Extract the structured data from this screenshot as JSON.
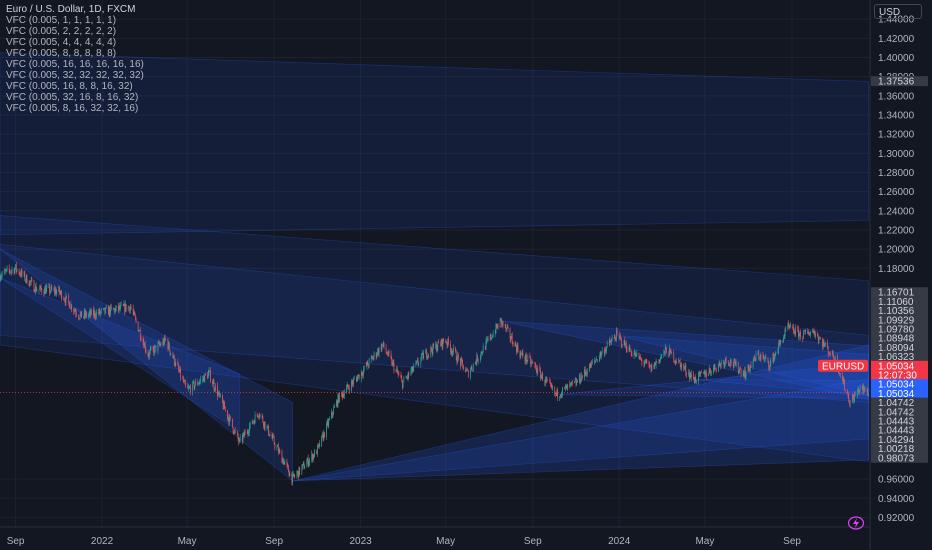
{
  "chart_data": {
    "type": "candlestick",
    "title": "Euro / U.S. Dollar, 1D, FXCM",
    "symbol": "EURUSD",
    "currency": "USD",
    "ylim": [
      0.91,
      1.46
    ],
    "y_ticks": [
      1.44,
      1.42,
      1.4,
      1.38,
      1.36,
      1.34,
      1.32,
      1.3,
      1.28,
      1.26,
      1.24,
      1.22,
      1.2,
      1.18,
      0.96,
      0.94,
      0.92
    ],
    "y_tick_labels": [
      "1.44000",
      "1.42000",
      "1.40000",
      "1.38000",
      "1.36000",
      "1.34000",
      "1.32000",
      "1.30000",
      "1.28000",
      "1.26000",
      "1.24000",
      "1.22000",
      "1.20000",
      "1.18000",
      "0.96000",
      "0.94000",
      "0.92000"
    ],
    "x_ticks": [
      {
        "label": "Sep",
        "date": "2021-09-01"
      },
      {
        "label": "2022",
        "date": "2022-01-01"
      },
      {
        "label": "May",
        "date": "2022-05-01"
      },
      {
        "label": "Sep",
        "date": "2022-09-01"
      },
      {
        "label": "2023",
        "date": "2023-01-01"
      },
      {
        "label": "May",
        "date": "2023-05-01"
      },
      {
        "label": "Sep",
        "date": "2023-09-01"
      },
      {
        "label": "2024",
        "date": "2024-01-01"
      },
      {
        "label": "May",
        "date": "2024-05-01"
      },
      {
        "label": "Sep",
        "date": "2024-09-01"
      }
    ],
    "xlim": [
      "2021-08-10",
      "2024-12-20"
    ],
    "price_path": [
      [
        "2021-08-10",
        1.173
      ],
      [
        "2021-09-01",
        1.18
      ],
      [
        "2021-10-01",
        1.158
      ],
      [
        "2021-11-01",
        1.156
      ],
      [
        "2021-12-01",
        1.13
      ],
      [
        "2022-01-01",
        1.134
      ],
      [
        "2022-02-10",
        1.14
      ],
      [
        "2022-03-07",
        1.09
      ],
      [
        "2022-04-01",
        1.105
      ],
      [
        "2022-05-01",
        1.052
      ],
      [
        "2022-06-01",
        1.07
      ],
      [
        "2022-07-14",
        0.998
      ],
      [
        "2022-08-10",
        1.03
      ],
      [
        "2022-09-27",
        0.96
      ],
      [
        "2022-11-01",
        0.99
      ],
      [
        "2022-12-01",
        1.045
      ],
      [
        "2023-01-01",
        1.07
      ],
      [
        "2023-02-01",
        1.1
      ],
      [
        "2023-03-01",
        1.06
      ],
      [
        "2023-04-01",
        1.09
      ],
      [
        "2023-05-01",
        1.105
      ],
      [
        "2023-06-01",
        1.07
      ],
      [
        "2023-07-18",
        1.125
      ],
      [
        "2023-08-15",
        1.09
      ],
      [
        "2023-09-01",
        1.08
      ],
      [
        "2023-10-03",
        1.048
      ],
      [
        "2023-11-01",
        1.06
      ],
      [
        "2023-12-28",
        1.11
      ],
      [
        "2024-01-15",
        1.095
      ],
      [
        "2024-02-15",
        1.075
      ],
      [
        "2024-03-08",
        1.095
      ],
      [
        "2024-04-16",
        1.064
      ],
      [
        "2024-05-01",
        1.07
      ],
      [
        "2024-06-01",
        1.085
      ],
      [
        "2024-06-27",
        1.07
      ],
      [
        "2024-07-15",
        1.09
      ],
      [
        "2024-08-01",
        1.08
      ],
      [
        "2024-08-26",
        1.118
      ],
      [
        "2024-09-15",
        1.11
      ],
      [
        "2024-10-01",
        1.115
      ],
      [
        "2024-11-01",
        1.085
      ],
      [
        "2024-11-22",
        1.04
      ],
      [
        "2024-12-06",
        1.055
      ],
      [
        "2024-12-18",
        1.05
      ]
    ],
    "indicators": [
      "VFC (0.005, 1, 1, 1, 1, 1)",
      "VFC (0.005, 2, 2, 2, 2, 2)",
      "VFC (0.005, 4, 4, 4, 4, 4)",
      "VFC (0.005, 8, 8, 8, 8, 8)",
      "VFC (0.005, 16, 16, 16, 16, 16)",
      "VFC (0.005, 32, 32, 32, 32, 32)",
      "VFC (0.005, 16, 8, 8, 16, 32)",
      "VFC (0.005, 32, 16, 8, 16, 32)",
      "VFC (0.005, 8, 16, 32, 32, 16)"
    ],
    "price_labels": [
      {
        "text": "1.37536",
        "value": 1.37536,
        "style": "level"
      },
      {
        "text": "1.16701",
        "value": 1.16701,
        "style": "level"
      },
      {
        "text": "1.11060",
        "value": 1.1106,
        "style": "level"
      },
      {
        "text": "1.10356",
        "value": 1.10356,
        "style": "level"
      },
      {
        "text": "1.09929",
        "value": 1.09929,
        "style": "level"
      },
      {
        "text": "1.09780",
        "value": 1.0978,
        "style": "level"
      },
      {
        "text": "1.08948",
        "value": 1.08948,
        "style": "level"
      },
      {
        "text": "1.08094",
        "value": 1.08094,
        "style": "level"
      },
      {
        "text": "1.06323",
        "value": 1.06323,
        "style": "level"
      },
      {
        "text": "1.05034",
        "value": 1.05034,
        "style": "current",
        "color": "#f23645"
      },
      {
        "text": "12:07:30",
        "value": 1.05034,
        "style": "countdown",
        "color": "#f23645"
      },
      {
        "text": "1.05034",
        "value": 1.05034,
        "style": "blue",
        "color": "#2962ff"
      },
      {
        "text": "1.05034",
        "value": 1.05034,
        "style": "blue",
        "color": "#2962ff"
      },
      {
        "text": "1.04742",
        "value": 1.04742,
        "style": "level"
      },
      {
        "text": "1.04742",
        "value": 1.04742,
        "style": "level"
      },
      {
        "text": "1.04443",
        "value": 1.04443,
        "style": "level"
      },
      {
        "text": "1.04443",
        "value": 1.04443,
        "style": "level"
      },
      {
        "text": "1.04294",
        "value": 1.04294,
        "style": "level"
      },
      {
        "text": "1.00218",
        "value": 1.00218,
        "style": "level"
      },
      {
        "text": "0.98073",
        "value": 0.98073,
        "style": "level"
      }
    ],
    "current_price": 1.05034,
    "colors": {
      "up": "#26a69a",
      "down": "#ef5350",
      "band": "#2962ff",
      "background": "#131722"
    }
  }
}
